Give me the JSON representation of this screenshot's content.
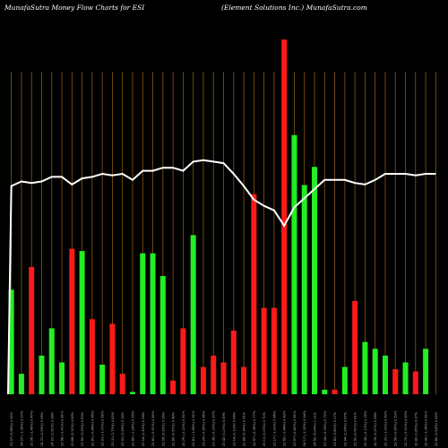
{
  "header": {
    "left_title": "MunafaSutra  Money Flow  Charts for ESI",
    "right_title": "(Element Solutions Inc.) MunafaSutra.com"
  },
  "colors": {
    "background": "#000000",
    "up": "#22ee22",
    "down": "#ff1a1a",
    "line": "#ffffff",
    "grid": "#8a5a14"
  },
  "chart_data": {
    "type": "bar",
    "title": "MunafaSutra  Money Flow  Charts for ESI",
    "subtitle": "(Element Solutions Inc.) MunafaSutra.com",
    "grid": "vertical",
    "categories": [
      "22.07 (0.96%) 0.52%",
      "24.07 (-1.36%) 0.07%",
      "23.95 (-1.49%) 0.47%",
      "24.31 (1.26%) 0.65%",
      "24.01 (1.91%) 0.38%",
      "23.56 (-0.41%) 0.81%",
      "23.66 (0.32%) 0.89%",
      "23.59 (3.39%) 0.63%",
      "22.81 (-0.44%) 0.45%",
      "22.91 (-1.72%) 0.59%",
      "23.31 (1.75%) 0.62%",
      "22.91 (0.26%) 0.34%",
      "22.85 (-1.26%) 0.55%",
      "23.14 (1.43%) 0.34%",
      "22.81 (-0.61%) 0.80%",
      "22.95 (0.26%) 0.95%",
      "22.89 (0.57%) 0.48%",
      "22.76 (-0.22%) 0.61%",
      "22.81 (-1.85%) 0.91%",
      "23.24 (-0.60%) 0.45%",
      "23.38 (-0.20%) 0.57%",
      "23.42 (1.23%) 0.49%",
      "23.14 (2.13%) 0.64%",
      "22.66 (0.38%) 0.51%",
      "22.57 (-2.36%) 0.77%",
      "23.11 (0.03%) 0.72%",
      "23.17 (-1.93%) 0.86%",
      "23.62 (-1.44%) 0.43%",
      "23.97 (-0.82%) 0.61%",
      "24.17 (-1.32%) 0.54%",
      "24.52 (5.04%) 1.11%",
      "23.34 (-2.05%) 0.72%",
      "23.83 (3.89%) 1.07%",
      "22.94 (1.94%) 0.67%",
      "22.50 (0.61%) 0.41%",
      "22.36 (-0.13%) 0.39%",
      "22.39 (0.27%) 0.58%",
      "22.33 (-1.02%) 0.43%",
      "22.56 (-0.60%) 0.53%",
      "22.70 (-0.51%) 0.63%",
      "22.82 (1.45%) 0.37%",
      "22.49 (-1.36%) 0.61%",
      "22.80 (1.54%) 0.52%"
    ],
    "series": [
      {
        "values": [
          46,
          9,
          56,
          17,
          29,
          14,
          64,
          63,
          33,
          13,
          31,
          9,
          1,
          62,
          62,
          52,
          6,
          29,
          70,
          12,
          17,
          14,
          28,
          12,
          88,
          38,
          38,
          156,
          114,
          92,
          100,
          2,
          2,
          12,
          41,
          23,
          20,
          17,
          11,
          14,
          10,
          20,
          0
        ],
        "direction": [
          "up",
          "up",
          "down",
          "up",
          "up",
          "up",
          "down",
          "up",
          "down",
          "up",
          "down",
          "down",
          "up",
          "up",
          "up",
          "up",
          "down",
          "down",
          "up",
          "down",
          "down",
          "down",
          "down",
          "down",
          "down",
          "down",
          "down",
          "down",
          "up",
          "up",
          "up",
          "up",
          "down",
          "up",
          "down",
          "up",
          "up",
          "up",
          "down",
          "up",
          "down",
          "up",
          "up"
        ]
      },
      {
        "type": "line",
        "values": [
          23.2,
          23.5,
          23.4,
          23.5,
          23.8,
          23.8,
          23.3,
          23.7,
          23.8,
          24.0,
          23.9,
          24.0,
          23.6,
          24.2,
          24.2,
          24.4,
          24.4,
          24.2,
          24.8,
          24.9,
          24.8,
          24.7,
          24.0,
          23.2,
          22.3,
          21.9,
          21.6,
          20.6,
          21.8,
          22.4,
          23.0,
          23.6,
          23.6,
          23.6,
          23.4,
          23.3,
          23.6,
          24.0,
          24.0,
          24.0,
          23.9,
          24.0,
          24.0
        ],
        "start": 8.0
      }
    ]
  }
}
